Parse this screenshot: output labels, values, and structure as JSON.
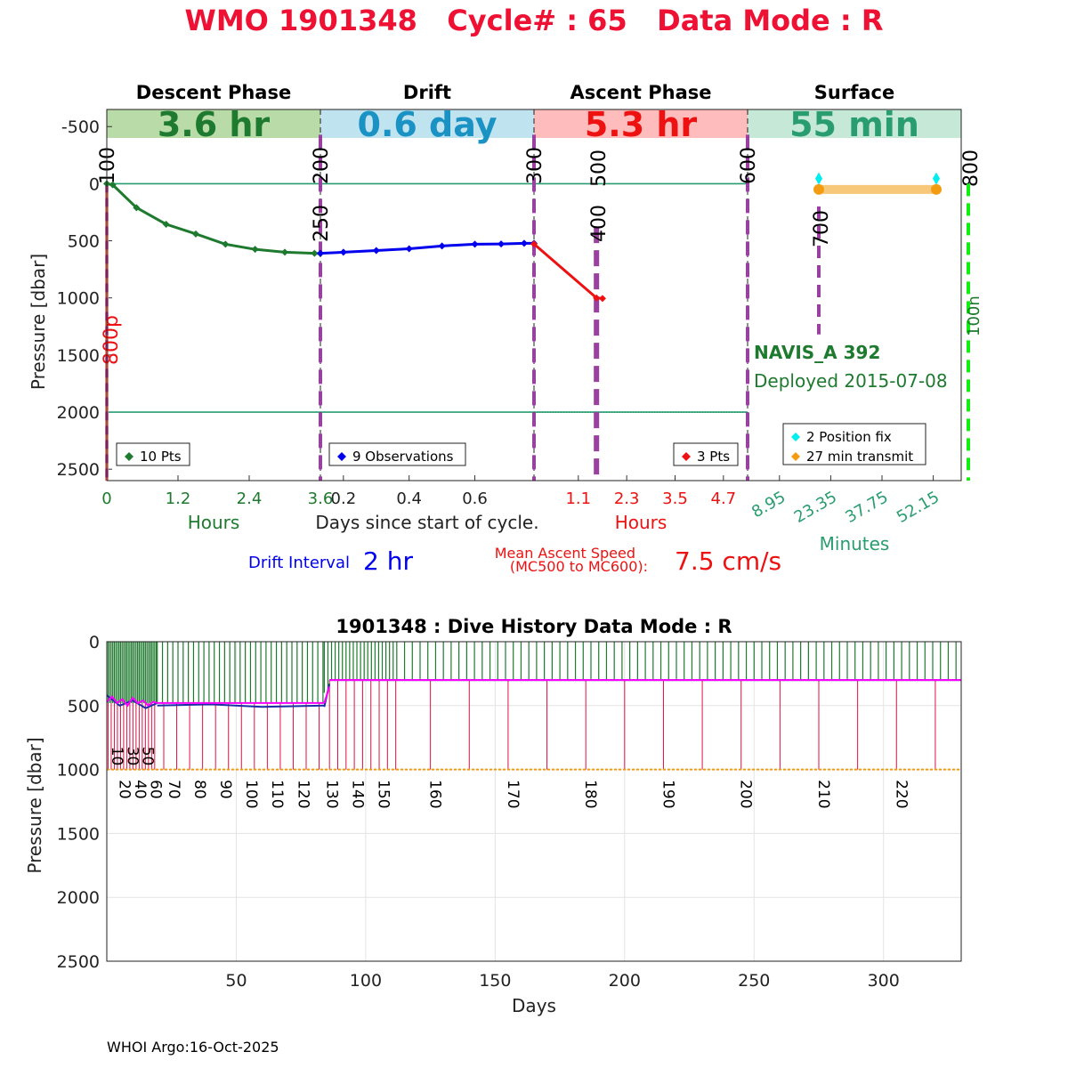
{
  "header": {
    "title": "WMO 1901348   Cycle# : 65   Data Mode : R",
    "footer": "WHOI Argo:16-Oct-2025"
  },
  "colors": {
    "title_red": "#ee1133",
    "descent_green": "#1e7a2e",
    "descent_band": "#b8dba8",
    "drift_blue": "#0000ee",
    "drift_band": "#bfe3ef",
    "drift_text": "#1a93c4",
    "ascent_red": "#ee1111",
    "ascent_band": "#ffbcbc",
    "surface_teal": "#2a9d70",
    "surface_band": "#c6e8d6",
    "mission_purple": "#9b3fa0",
    "transmit_orange": "#f7c87a",
    "fix_cyan": "#00eeee",
    "magenta": "#ff00ff"
  },
  "chart_data": [
    {
      "type": "line",
      "title": "",
      "ylabel": "Pressure [dbar]",
      "xlabel": "Days since start of cycle.",
      "ylim": [
        -650,
        2600
      ],
      "y_ticks": [
        "-500",
        "0",
        "500",
        "1000",
        "1500",
        "2000",
        "2500"
      ],
      "y_tick_values": [
        -500,
        0,
        500,
        1000,
        1500,
        2000,
        2500
      ],
      "reference_lines": [
        0,
        2000
      ],
      "phases": [
        {
          "name": "Descent Phase",
          "duration": "3.6 hr",
          "axis_label": "Hours",
          "xlim": [
            0,
            3.6
          ],
          "ticks": [
            "0",
            "1.2",
            "2.4",
            "3.6"
          ],
          "tick_values": [
            0,
            1.2,
            2.4,
            3.6
          ],
          "legend": "10 Pts",
          "series": {
            "name": "10 Pts",
            "x": [
              0,
              0.1,
              0.5,
              1.0,
              1.5,
              2.0,
              2.5,
              3.0,
              3.5,
              3.6
            ],
            "y": [
              0,
              10,
              210,
              355,
              440,
              530,
              575,
              600,
              610,
              612
            ]
          }
        },
        {
          "name": "Drift",
          "duration": "0.6 day",
          "axis_label": "",
          "xlim": [
            0.13,
            0.78
          ],
          "ticks": [
            "0.2",
            "0.4",
            "0.6"
          ],
          "tick_values": [
            0.2,
            0.4,
            0.6
          ],
          "legend": "9 Observations",
          "series": {
            "name": "9 Observations",
            "x": [
              0.13,
              0.2,
              0.3,
              0.4,
              0.5,
              0.6,
              0.68,
              0.75,
              0.78
            ],
            "y": [
              610,
              600,
              585,
              570,
              545,
              530,
              528,
              522,
              522
            ]
          }
        },
        {
          "name": "Ascent Phase",
          "duration": "5.3 hr",
          "axis_label": "Hours",
          "xlim": [
            0,
            5.3
          ],
          "ticks": [
            "1.1",
            "2.3",
            "3.5",
            "4.7"
          ],
          "tick_values": [
            1.1,
            2.3,
            3.5,
            4.7
          ],
          "legend": "3 Pts",
          "series": {
            "name": "3 Pts",
            "x": [
              0,
              1.55,
              1.7
            ],
            "y": [
              528,
              1000,
              1005
            ]
          }
        },
        {
          "name": "Surface",
          "duration": "55 min",
          "axis_label": "Minutes",
          "xlim": [
            0,
            60
          ],
          "ticks": [
            "8.95",
            "23.35",
            "37.75",
            "52.15"
          ],
          "tick_values": [
            8.95,
            23.35,
            37.75,
            52.15
          ],
          "legend": [
            "2 Position fix",
            "27 min transmit"
          ],
          "transmit": {
            "x": [
              20,
              53
            ],
            "y": 50
          },
          "position_fixes": [
            {
              "x": 20,
              "y": -45
            },
            {
              "x": 53,
              "y": -45
            }
          ]
        }
      ],
      "mission_markers": [
        {
          "label": "100",
          "phase": 0,
          "x": 0,
          "style": "salmon"
        },
        {
          "label": "200",
          "phase": 1,
          "x": 0.13,
          "style": "purple"
        },
        {
          "label": "250",
          "phase": 1,
          "x": 0.13,
          "style": "none"
        },
        {
          "label": "300",
          "phase": 2,
          "x": 0,
          "style": "purple"
        },
        {
          "label": "400",
          "phase": 2,
          "x": 1.55,
          "style": "purple-thick"
        },
        {
          "label": "500",
          "phase": 2,
          "x": 1.55,
          "style": "none"
        },
        {
          "label": "600",
          "phase": 2,
          "x": 5.3,
          "style": "purple"
        },
        {
          "label": "700",
          "phase": 3,
          "x": 20,
          "style": "purple-short"
        },
        {
          "label": "800",
          "phase": 3,
          "x": 62,
          "style": "none"
        },
        {
          "label": "800p",
          "phase": 0,
          "x": 0,
          "style": "none"
        },
        {
          "label": "100n",
          "phase": 3,
          "x": 62,
          "style": "green"
        }
      ],
      "float_info": {
        "model": "NAVIS_A 392",
        "deployed": "Deployed 2015-07-08"
      },
      "drift_interval": {
        "label": "Drift Interval",
        "value": "2 hr"
      },
      "ascent_speed": {
        "label_line1": "Mean Ascent Speed",
        "label_line2": "(MC500 to MC600):",
        "value": "7.5 cm/s"
      }
    },
    {
      "type": "line",
      "title": "1901348 : Dive History      Data Mode : R",
      "xlabel": "Days",
      "ylabel": "Pressure [dbar]",
      "xlim": [
        0,
        330
      ],
      "ylim": [
        0,
        2500
      ],
      "x_ticks": [
        "50",
        "100",
        "150",
        "200",
        "250",
        "300"
      ],
      "x_tick_values": [
        50,
        100,
        150,
        200,
        250,
        300
      ],
      "y_ticks": [
        "0",
        "500",
        "1000",
        "1500",
        "2000",
        "2500"
      ],
      "y_tick_values": [
        0,
        500,
        1000,
        1500,
        2000,
        2500
      ],
      "profile_depth": 1000,
      "series": [
        {
          "name": "",
          "segments": [
            {
              "x": [
                0,
                2,
                4,
                6,
                8,
                10,
                12,
                14,
                16,
                18,
                19.5
              ],
              "y": [
                470,
                430,
                480,
                450,
                500,
                440,
                480,
                460,
                500,
                470,
                480
              ]
            },
            {
              "x": [
                19.5,
                84
              ],
              "y": [
                480,
                480
              ]
            },
            {
              "x": [
                84,
                86
              ],
              "y": [
                480,
                350
              ]
            },
            {
              "x": [
                86,
                330
              ],
              "y": [
                300,
                300
              ]
            }
          ]
        },
        {
          "name": "",
          "segments": [
            {
              "x": [
                0,
                5,
                10,
                15,
                19.5
              ],
              "y": [
                420,
                500,
                460,
                520,
                480
              ]
            },
            {
              "x": [
                19.5,
                40,
                60,
                84
              ],
              "y": [
                500,
                490,
                510,
                500
              ]
            },
            {
              "x": [
                84,
                86
              ],
              "y": [
                510,
                330
              ]
            },
            {
              "x": [
                86,
                330
              ],
              "y": [
                300,
                300
              ]
            }
          ]
        },
        {
          "name": "",
          "y": 1000,
          "xlim": [
            0,
            330
          ]
        }
      ],
      "cycle_labels": [
        {
          "text": "10",
          "x": 2,
          "y": 820
        },
        {
          "text": "30",
          "x": 8,
          "y": 820
        },
        {
          "text": "50",
          "x": 14,
          "y": 820
        },
        {
          "text": "20",
          "x": 5,
          "y": 1080
        },
        {
          "text": "40",
          "x": 11,
          "y": 1080
        },
        {
          "text": "60",
          "x": 17,
          "y": 1080
        },
        {
          "text": "70",
          "x": 24,
          "y": 1080
        },
        {
          "text": "80",
          "x": 34,
          "y": 1080
        },
        {
          "text": "90",
          "x": 44,
          "y": 1080
        },
        {
          "text": "100",
          "x": 54,
          "y": 1080
        },
        {
          "text": "110",
          "x": 64,
          "y": 1080
        },
        {
          "text": "120",
          "x": 74,
          "y": 1080
        },
        {
          "text": "130",
          "x": 85,
          "y": 1080
        },
        {
          "text": "140",
          "x": 95,
          "y": 1080
        },
        {
          "text": "150",
          "x": 105,
          "y": 1080
        },
        {
          "text": "160",
          "x": 125,
          "y": 1080
        },
        {
          "text": "170",
          "x": 155,
          "y": 1080
        },
        {
          "text": "180",
          "x": 185,
          "y": 1080
        },
        {
          "text": "190",
          "x": 215,
          "y": 1080
        },
        {
          "text": "200",
          "x": 245,
          "y": 1080
        },
        {
          "text": "210",
          "x": 275,
          "y": 1080
        },
        {
          "text": "220",
          "x": 305,
          "y": 1080
        }
      ]
    }
  ]
}
